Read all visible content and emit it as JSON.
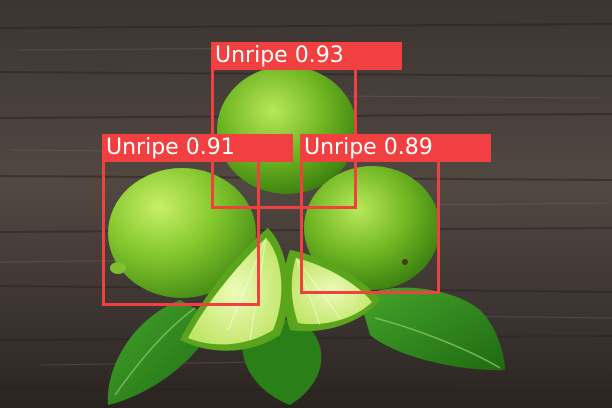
{
  "image": {
    "subject": "limes on wooden table",
    "palette": {
      "wood_dark": "#2e2723",
      "wood_light": "#6b625c",
      "lime_dark": "#3f8f14",
      "lime_light": "#a6dc3e",
      "lime_flesh": "#d4f18a",
      "leaf": "#2f8a1e",
      "box": "#f23f3f",
      "label_text": "#ffffff"
    }
  },
  "detections": [
    {
      "label": "Unripe",
      "confidence": "0.93"
    },
    {
      "label": "Unripe",
      "confidence": "0.91"
    },
    {
      "label": "Unripe",
      "confidence": "0.89"
    }
  ]
}
